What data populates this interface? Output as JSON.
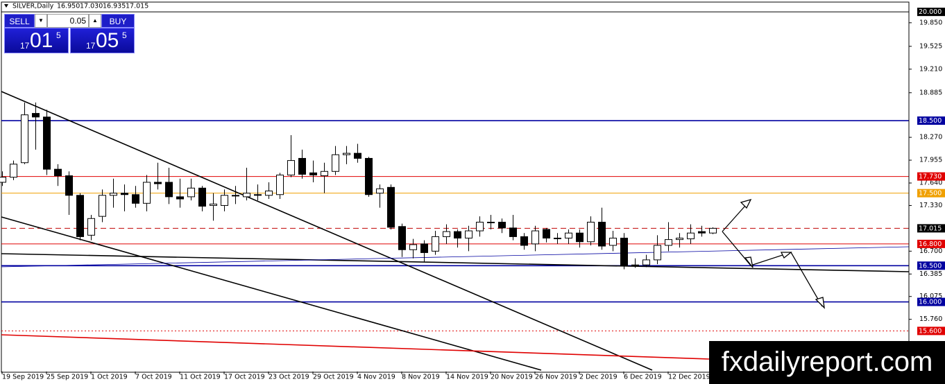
{
  "header": {
    "symbol": "SILVER,Daily",
    "ohlc": [
      "16.950",
      "17.030",
      "16.935",
      "17.015"
    ]
  },
  "trade_panel": {
    "sell": "SELL",
    "buy": "BUY",
    "lot": "0.05",
    "sell_price": {
      "small": "17",
      "big": "01",
      "pip": "5"
    },
    "buy_price": {
      "small": "17",
      "big": "05",
      "pip": "5"
    }
  },
  "watermark": "fxdailyreport.com",
  "chart_data": {
    "type": "candlestick",
    "categories": [
      "19 Sep 2019",
      null,
      null,
      null,
      "25 Sep 2019",
      null,
      null,
      null,
      "1 Oct 2019",
      null,
      null,
      null,
      "7 Oct 2019",
      null,
      null,
      null,
      "11 Oct 2019",
      null,
      null,
      null,
      "17 Oct 2019",
      null,
      null,
      null,
      "23 Oct 2019",
      null,
      null,
      null,
      "29 Oct 2019",
      null,
      null,
      null,
      "4 Nov 2019",
      null,
      null,
      null,
      "8 Nov 2019",
      null,
      null,
      null,
      "14 Nov 2019",
      null,
      null,
      null,
      "20 Nov 2019",
      null,
      null,
      null,
      "26 Nov 2019",
      null,
      null,
      null,
      "2 Dec 2019",
      null,
      null,
      null,
      "6 Dec 2019",
      null,
      null,
      null,
      "12 Dec 2019",
      null,
      null,
      null,
      null
    ],
    "open": [
      17.65,
      17.72,
      17.92,
      18.6,
      18.55,
      17.83,
      17.74,
      17.47,
      16.92,
      17.18,
      17.47,
      17.5,
      17.48,
      17.36,
      17.65,
      17.65,
      17.45,
      17.45,
      17.57,
      17.33,
      17.33,
      17.47,
      17.45,
      17.48,
      17.47,
      17.48,
      17.75,
      17.98,
      17.78,
      17.74,
      17.8,
      18.03,
      18.05,
      17.98,
      17.5,
      17.58,
      17.04,
      16.72,
      16.8,
      16.7,
      16.9,
      16.97,
      16.88,
      16.98,
      17.1,
      17.1,
      17.02,
      16.9,
      16.8,
      17.0,
      16.88,
      16.88,
      16.95,
      16.83,
      17.1,
      16.78,
      16.88,
      16.5,
      16.51,
      16.58,
      16.78,
      16.86,
      16.87,
      16.97,
      16.95
    ],
    "high": [
      17.8,
      17.95,
      18.75,
      18.75,
      18.65,
      17.9,
      17.8,
      17.5,
      17.2,
      17.55,
      17.7,
      17.62,
      17.6,
      17.75,
      17.92,
      17.85,
      17.7,
      17.7,
      17.6,
      17.5,
      17.55,
      17.6,
      17.85,
      17.62,
      17.65,
      17.78,
      18.3,
      18.1,
      17.95,
      17.92,
      18.15,
      18.15,
      18.18,
      18.0,
      17.62,
      17.62,
      17.08,
      16.87,
      16.85,
      16.98,
      17.07,
      17.0,
      17.05,
      17.18,
      17.2,
      17.15,
      17.2,
      16.95,
      17.05,
      17.02,
      16.95,
      17.0,
      17.0,
      17.18,
      17.3,
      16.98,
      16.95,
      16.6,
      16.65,
      16.92,
      17.1,
      16.95,
      17.07,
      17.05,
      17.03
    ],
    "low": [
      17.6,
      17.68,
      17.9,
      18.1,
      17.75,
      17.6,
      17.2,
      16.85,
      16.85,
      17.1,
      17.3,
      17.25,
      17.3,
      17.25,
      17.55,
      17.35,
      17.3,
      17.4,
      17.25,
      17.12,
      17.25,
      17.35,
      17.4,
      17.4,
      17.42,
      17.42,
      17.72,
      17.7,
      17.65,
      17.5,
      17.75,
      17.9,
      17.92,
      17.45,
      17.3,
      17.0,
      16.62,
      16.6,
      16.55,
      16.65,
      16.8,
      16.75,
      16.7,
      16.9,
      17.0,
      16.95,
      16.85,
      16.72,
      16.7,
      16.82,
      16.8,
      16.8,
      16.75,
      16.78,
      16.72,
      16.7,
      16.45,
      16.47,
      16.48,
      16.52,
      16.7,
      16.75,
      16.8,
      16.9,
      16.935
    ],
    "close": [
      17.72,
      17.9,
      18.58,
      18.55,
      17.83,
      17.74,
      17.47,
      16.9,
      17.15,
      17.47,
      17.5,
      17.48,
      17.36,
      17.65,
      17.63,
      17.45,
      17.42,
      17.57,
      17.32,
      17.35,
      17.47,
      17.46,
      17.5,
      17.47,
      17.53,
      17.75,
      17.95,
      17.76,
      17.75,
      17.8,
      18.03,
      18.05,
      17.98,
      17.48,
      17.56,
      17.03,
      16.72,
      16.79,
      16.68,
      16.9,
      16.97,
      16.88,
      16.98,
      17.1,
      17.1,
      17.02,
      16.9,
      16.78,
      16.98,
      16.88,
      16.88,
      16.95,
      16.83,
      17.1,
      16.77,
      16.88,
      16.5,
      16.51,
      16.58,
      16.78,
      16.86,
      16.88,
      16.95,
      16.95,
      17.015
    ],
    "ylim": [
      15.04,
      20.03
    ],
    "yticks": [
      {
        "value": 19.85,
        "label": "19.850"
      },
      {
        "value": 19.525,
        "label": "19.525"
      },
      {
        "value": 19.21,
        "label": "19.210"
      },
      {
        "value": 18.885,
        "label": "18.885"
      },
      {
        "value": 18.27,
        "label": "18.270"
      },
      {
        "value": 17.955,
        "label": "17.955"
      },
      {
        "value": 17.64,
        "label": "17.640"
      },
      {
        "value": 17.33,
        "label": "17.330"
      },
      {
        "value": 16.7,
        "label": "16.700"
      },
      {
        "value": 16.385,
        "label": "16.385"
      },
      {
        "value": 16.075,
        "label": "16.075"
      },
      {
        "value": 15.76,
        "label": "15.760"
      }
    ],
    "levels": [
      {
        "value": 20,
        "label": "20.000",
        "color": "#000000",
        "style": "solid"
      },
      {
        "value": 18.5,
        "label": "18.500",
        "color": "#0000a0",
        "style": "solid"
      },
      {
        "value": 17.73,
        "label": "17.730",
        "color": "#e00000",
        "style": "solid"
      },
      {
        "value": 17.5,
        "label": "17.500",
        "color": "#f0a000",
        "style": "solid"
      },
      {
        "value": 17.015,
        "label": "17.015",
        "color": "#c00000",
        "style": "dashed"
      },
      {
        "value": 16.8,
        "label": "16.800",
        "color": "#e00000",
        "style": "solid"
      },
      {
        "value": 16.5,
        "label": "16.500",
        "color": "#0000a0",
        "style": "solid"
      },
      {
        "value": 16,
        "label": "16.000",
        "color": "#0000a0",
        "style": "solid"
      },
      {
        "value": 15.6,
        "label": "15.600",
        "color": "#e00000",
        "style": "dotted"
      }
    ],
    "bull_color": "#ffffff",
    "bear_color": "#000000"
  }
}
